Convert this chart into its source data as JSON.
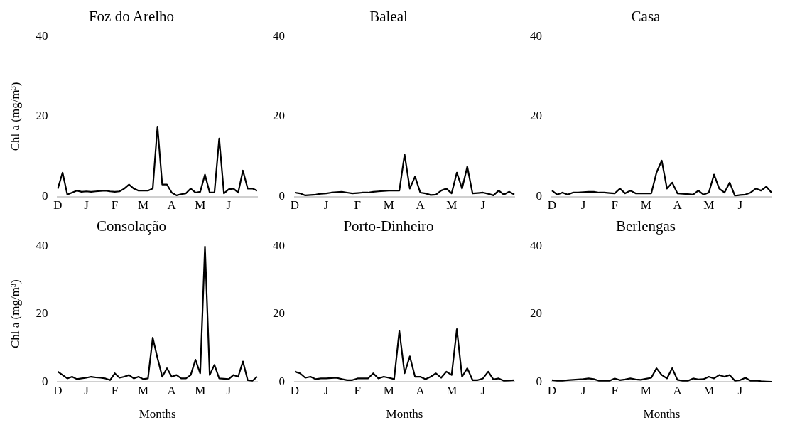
{
  "chart_data": [
    {
      "type": "line",
      "title": "Foz do Arelho",
      "ylabel": "Chl a (mg/m³)",
      "categories": [
        "D",
        null,
        null,
        null,
        null,
        null,
        "J",
        null,
        null,
        null,
        null,
        null,
        "F",
        null,
        null,
        null,
        null,
        null,
        "M",
        null,
        null,
        null,
        null,
        null,
        "A",
        null,
        null,
        null,
        null,
        null,
        "M",
        null,
        null,
        null,
        null,
        null,
        "J",
        null,
        null,
        null,
        null,
        null,
        null
      ],
      "ylim": [
        0,
        40
      ],
      "yticks": [
        0,
        20,
        40
      ],
      "series": [
        {
          "color": "#000000",
          "values": [
            2,
            6,
            0.5,
            1,
            1.5,
            1.2,
            1.3,
            1.2,
            1.3,
            1.4,
            1.5,
            1.3,
            1.2,
            1.3,
            2,
            3,
            2,
            1.5,
            1.5,
            1.5,
            2,
            17.5,
            3,
            3,
            1,
            0.3,
            0.6,
            0.8,
            2,
            1,
            1.2,
            5.5,
            1,
            1,
            14.5,
            0.8,
            1.8,
            2,
            1,
            6.5,
            2,
            2,
            1.5
          ]
        }
      ]
    },
    {
      "type": "line",
      "title": "Baleal",
      "categories": [
        "D",
        null,
        null,
        null,
        null,
        null,
        "J",
        null,
        null,
        null,
        null,
        null,
        "F",
        null,
        null,
        null,
        null,
        null,
        "M",
        null,
        null,
        null,
        null,
        null,
        "A",
        null,
        null,
        null,
        null,
        null,
        "M",
        null,
        null,
        null,
        null,
        null,
        "J",
        null,
        null,
        null,
        null,
        null,
        null
      ],
      "ylim": [
        0,
        40
      ],
      "yticks": [
        0,
        20,
        40
      ],
      "series": [
        {
          "color": "#000000",
          "values": [
            1,
            0.8,
            0.3,
            0.4,
            0.5,
            0.7,
            0.8,
            1,
            1.1,
            1.2,
            1,
            0.8,
            0.9,
            1,
            1,
            1.2,
            1.3,
            1.4,
            1.5,
            1.5,
            1.5,
            10.5,
            2,
            5,
            1,
            0.8,
            0.4,
            0.5,
            1.5,
            2,
            0.8,
            6,
            2,
            7.5,
            0.8,
            0.9,
            1,
            0.7,
            0.3,
            1.5,
            0.5,
            1.2,
            0.5
          ]
        }
      ]
    },
    {
      "type": "line",
      "title": "Casa",
      "categories": [
        "D",
        null,
        null,
        null,
        null,
        null,
        "J",
        null,
        null,
        null,
        null,
        null,
        "F",
        null,
        null,
        null,
        null,
        null,
        "M",
        null,
        null,
        null,
        null,
        null,
        "A",
        null,
        null,
        null,
        null,
        null,
        "M",
        null,
        null,
        null,
        null,
        null,
        "J",
        null,
        null,
        null,
        null,
        null,
        null
      ],
      "ylim": [
        0,
        40
      ],
      "yticks": [
        0,
        20,
        40
      ],
      "series": [
        {
          "color": "#000000",
          "values": [
            1.5,
            0.5,
            1,
            0.5,
            1,
            1,
            1.1,
            1.2,
            1.2,
            1,
            1,
            0.9,
            0.8,
            2,
            0.8,
            1.5,
            0.8,
            0.8,
            0.8,
            0.8,
            6,
            9,
            2,
            3.5,
            0.8,
            0.7,
            0.6,
            0.5,
            1.5,
            0.5,
            1,
            5.5,
            2,
            1,
            3.5,
            0.2,
            0.4,
            0.5,
            1,
            2,
            1.5,
            2.5,
            1
          ]
        }
      ]
    },
    {
      "type": "line",
      "title": "Consolação",
      "ylabel": "Chl a (mg/m³)",
      "xlabel": "Months",
      "categories": [
        "D",
        null,
        null,
        null,
        null,
        null,
        "J",
        null,
        null,
        null,
        null,
        null,
        "F",
        null,
        null,
        null,
        null,
        null,
        "M",
        null,
        null,
        null,
        null,
        null,
        "A",
        null,
        null,
        null,
        null,
        null,
        "M",
        null,
        null,
        null,
        null,
        null,
        "J",
        null,
        null,
        null,
        null,
        null,
        null
      ],
      "ylim": [
        0,
        40
      ],
      "yticks": [
        0,
        20,
        40
      ],
      "series": [
        {
          "color": "#000000",
          "values": [
            3,
            2,
            1,
            1.5,
            0.8,
            1,
            1.2,
            1.5,
            1.3,
            1.2,
            1,
            0.5,
            2.5,
            1.2,
            1.5,
            2,
            1,
            1.5,
            0.8,
            1,
            13,
            7,
            1.5,
            4,
            1.5,
            2,
            1,
            1,
            2,
            6.5,
            2.5,
            40,
            2,
            5,
            1,
            0.9,
            0.8,
            2,
            1.5,
            6,
            0.5,
            0.3,
            1.5
          ]
        }
      ]
    },
    {
      "type": "line",
      "title": "Porto-Dinheiro",
      "xlabel": "Months",
      "categories": [
        "D",
        null,
        null,
        null,
        null,
        null,
        "J",
        null,
        null,
        null,
        null,
        null,
        "F",
        null,
        null,
        null,
        null,
        null,
        "M",
        null,
        null,
        null,
        null,
        null,
        "A",
        null,
        null,
        null,
        null,
        null,
        "M",
        null,
        null,
        null,
        null,
        null,
        "J",
        null,
        null,
        null,
        null,
        null,
        null
      ],
      "ylim": [
        0,
        40
      ],
      "yticks": [
        0,
        20,
        40
      ],
      "series": [
        {
          "color": "#000000",
          "values": [
            3,
            2.5,
            1.2,
            1.5,
            0.8,
            1,
            1,
            1.1,
            1.2,
            0.8,
            0.5,
            0.5,
            1,
            1,
            1,
            2.5,
            1,
            1.5,
            1.2,
            0.8,
            15,
            2.5,
            7.5,
            1.5,
            1.5,
            0.8,
            1.5,
            2.5,
            1.2,
            3,
            2,
            15.5,
            1.5,
            4,
            0.5,
            0.5,
            1,
            3,
            0.7,
            1,
            0.3,
            0.4,
            0.5
          ]
        }
      ]
    },
    {
      "type": "line",
      "title": "Berlengas",
      "xlabel": "Months",
      "categories": [
        "D",
        null,
        null,
        null,
        null,
        null,
        "J",
        null,
        null,
        null,
        null,
        null,
        "F",
        null,
        null,
        null,
        null,
        null,
        "M",
        null,
        null,
        null,
        null,
        null,
        "A",
        null,
        null,
        null,
        null,
        null,
        "M",
        null,
        null,
        null,
        null,
        null,
        "J",
        null,
        null,
        null,
        null,
        null,
        null
      ],
      "ylim": [
        0,
        40
      ],
      "yticks": [
        0,
        20,
        40
      ],
      "series": [
        {
          "color": "#000000",
          "values": [
            0.5,
            0.3,
            0.3,
            0.5,
            0.6,
            0.7,
            0.8,
            1,
            0.8,
            0.3,
            0.3,
            0.3,
            1,
            0.5,
            0.7,
            1,
            0.7,
            0.6,
            0.9,
            1.2,
            4,
            2,
            1,
            4,
            0.6,
            0.3,
            0.3,
            1,
            0.7,
            0.8,
            1.5,
            1,
            2,
            1.5,
            2,
            0.3,
            0.5,
            1.2,
            0.3,
            0.4,
            0.2,
            0.1,
            0
          ]
        }
      ]
    }
  ]
}
